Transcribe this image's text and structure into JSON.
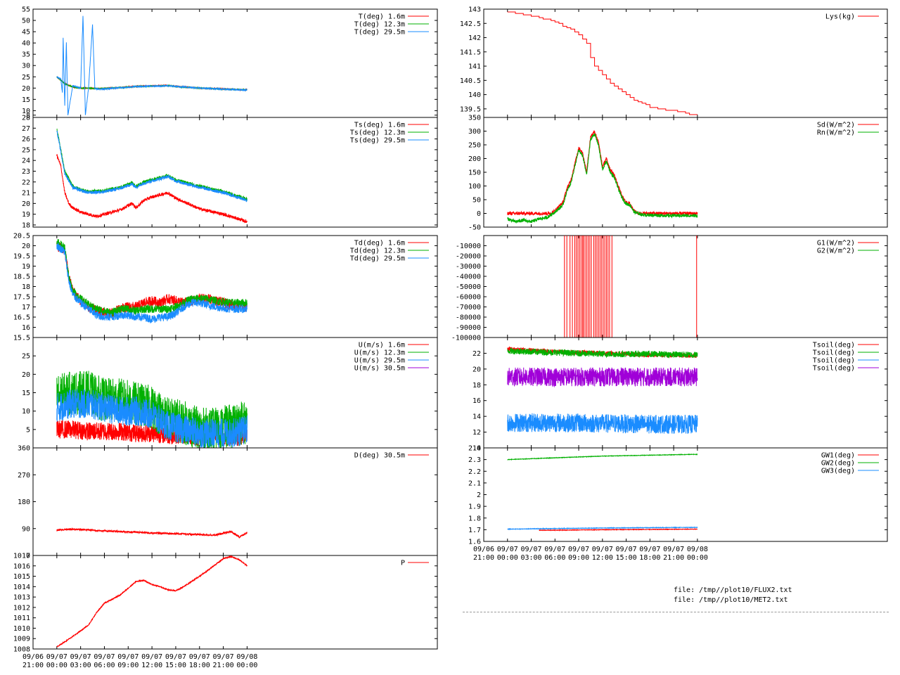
{
  "colors": {
    "red": "#ff0000",
    "green": "#00b000",
    "blue": "#1a8cff",
    "purple": "#a000d8"
  },
  "files": [
    "file: /tmp//plot10/FLUX2.txt",
    "file: /tmp//plot10/MET2.txt"
  ],
  "x_axis": {
    "range": [
      -3,
      48
    ],
    "ticks": [
      {
        "v": -3,
        "l1": "09/06",
        "l2": "21:00"
      },
      {
        "v": 0,
        "l1": "09/07",
        "l2": "00:00"
      },
      {
        "v": 3,
        "l1": "09/07",
        "l2": "03:00"
      },
      {
        "v": 6,
        "l1": "09/07",
        "l2": "06:00"
      },
      {
        "v": 9,
        "l1": "09/07",
        "l2": "09:00"
      },
      {
        "v": 12,
        "l1": "09/07",
        "l2": "12:00"
      },
      {
        "v": 15,
        "l1": "09/07",
        "l2": "15:00"
      },
      {
        "v": 18,
        "l1": "09/07",
        "l2": "18:00"
      },
      {
        "v": 21,
        "l1": "09/07",
        "l2": "21:00"
      },
      {
        "v": 24,
        "l1": "09/08",
        "l2": "00:00"
      }
    ]
  },
  "chart_data": [
    {
      "type": "line",
      "column": "left",
      "ylim": [
        7,
        55
      ],
      "yticks": [
        "55",
        "50",
        "45",
        "40",
        "35",
        "30",
        "25",
        "20",
        "15",
        "10",
        "8"
      ],
      "series": [
        {
          "name": "T(deg)  1.6m",
          "color": "red",
          "x": [
            0,
            1,
            2,
            3,
            4,
            5,
            6,
            8,
            10,
            12,
            14,
            16,
            18,
            20,
            22,
            24
          ],
          "y": [
            25,
            22,
            20.5,
            20,
            20,
            19.8,
            19.8,
            20.3,
            20.8,
            21,
            21.2,
            20.5,
            20,
            19.8,
            19.5,
            19.2
          ]
        },
        {
          "name": "T(deg) 12.3m",
          "color": "green",
          "x": [
            0,
            1,
            2,
            3,
            4,
            5,
            6,
            8,
            10,
            12,
            14,
            16,
            18,
            20,
            22,
            24
          ],
          "y": [
            25,
            22,
            20.5,
            20,
            20,
            19.8,
            19.8,
            20.2,
            20.7,
            20.9,
            21.1,
            20.4,
            20,
            19.7,
            19.4,
            19.2
          ]
        },
        {
          "name": "T(deg) 29.5m",
          "color": "blue",
          "x": [
            0,
            0.5,
            0.7,
            0.8,
            1,
            1.2,
            1.4,
            2,
            3,
            3.3,
            3.6,
            4,
            4.5,
            4.8,
            5,
            6,
            10,
            14,
            18,
            22,
            24
          ],
          "y": [
            25,
            24,
            18,
            42,
            12,
            40,
            8,
            21,
            20,
            52,
            8,
            20,
            48,
            19.6,
            19.6,
            19.6,
            20.7,
            21,
            20,
            19.4,
            19.1
          ]
        }
      ]
    },
    {
      "type": "line",
      "column": "left",
      "ylim": [
        17.8,
        28
      ],
      "yticks": [
        "28",
        "27",
        "26",
        "25",
        "24",
        "23",
        "22",
        "21",
        "20",
        "19",
        "18"
      ],
      "series": [
        {
          "name": "Ts(deg)  1.6m",
          "color": "red",
          "x": [
            0,
            0.5,
            1,
            1.5,
            2,
            3,
            4,
            5,
            6,
            8,
            9.5,
            10,
            11,
            12,
            14,
            15,
            18,
            21,
            24
          ],
          "y": [
            24.5,
            23.5,
            21,
            20,
            19.6,
            19.2,
            19,
            18.8,
            19,
            19.4,
            20,
            19.6,
            20.3,
            20.6,
            21,
            20.5,
            19.5,
            19,
            18.3
          ]
        },
        {
          "name": "Ts(deg) 12.3m",
          "color": "green",
          "x": [
            0,
            0.5,
            1,
            2,
            3,
            4,
            6,
            8,
            9.5,
            10,
            11,
            12,
            14,
            15,
            18,
            21,
            24
          ],
          "y": [
            27,
            25,
            23,
            21.6,
            21.3,
            21.1,
            21.2,
            21.5,
            21.9,
            21.6,
            22,
            22.2,
            22.6,
            22.2,
            21.6,
            21.1,
            20.4
          ]
        },
        {
          "name": "Ts(deg) 29.5m",
          "color": "blue",
          "x": [
            0,
            0.5,
            1,
            2,
            3,
            4,
            6,
            8,
            9.5,
            10,
            11,
            12,
            14,
            15,
            18,
            21,
            24
          ],
          "y": [
            26.8,
            24.8,
            22.8,
            21.5,
            21.2,
            21,
            21.1,
            21.4,
            21.8,
            21.5,
            21.9,
            22.1,
            22.5,
            22.1,
            21.5,
            21,
            20.3
          ]
        }
      ]
    },
    {
      "type": "line",
      "column": "left",
      "ylim": [
        15.5,
        20.5
      ],
      "yticks": [
        "20.5",
        "20",
        "19.5",
        "19",
        "18.5",
        "18",
        "17.5",
        "17",
        "16.5",
        "16",
        "15.5"
      ],
      "series": [
        {
          "name": "Td(deg)  1.6m",
          "color": "red",
          "x": [
            0,
            1,
            1.5,
            2,
            3,
            4,
            5,
            6,
            7,
            8,
            9,
            10,
            11,
            12,
            13,
            14,
            15,
            16,
            17,
            18,
            19,
            20,
            22,
            24
          ],
          "y": [
            20,
            19.8,
            18.5,
            17.8,
            17.3,
            17,
            16.8,
            16.7,
            16.7,
            16.9,
            17,
            17,
            17.2,
            17.3,
            17.2,
            17.4,
            17.3,
            17.2,
            17.3,
            17.4,
            17.4,
            17.3,
            17.1,
            17
          ]
        },
        {
          "name": "Td(deg) 12.3m",
          "color": "green",
          "x": [
            0,
            1,
            1.5,
            2,
            3,
            4,
            5,
            6,
            7,
            8,
            9,
            10,
            11,
            12,
            13,
            14,
            15,
            16,
            17,
            18,
            19,
            20,
            22,
            24
          ],
          "y": [
            20.2,
            19.9,
            18.5,
            17.8,
            17.4,
            17.1,
            16.9,
            16.8,
            16.7,
            16.9,
            16.9,
            16.8,
            16.9,
            16.9,
            16.9,
            16.9,
            17,
            17.2,
            17.4,
            17.4,
            17.4,
            17.3,
            17.2,
            17.2
          ]
        },
        {
          "name": "Td(deg) 29.5m",
          "color": "blue",
          "x": [
            0,
            1,
            1.5,
            2,
            3,
            4,
            5,
            6,
            7,
            8,
            9,
            10,
            11,
            12,
            13,
            14,
            15,
            16,
            17,
            18,
            19,
            20,
            22,
            24
          ],
          "y": [
            20,
            19.7,
            18.3,
            17.6,
            17.2,
            16.9,
            16.6,
            16.5,
            16.5,
            16.6,
            16.6,
            16.5,
            16.5,
            16.4,
            16.5,
            16.5,
            16.7,
            17,
            17.2,
            17.2,
            17.1,
            17,
            16.9,
            16.9
          ]
        }
      ]
    },
    {
      "type": "line",
      "column": "left",
      "ylim": [
        0,
        30
      ],
      "yticks": [
        "25",
        "20",
        "15",
        "10",
        "5"
      ],
      "series": [
        {
          "name": "U(m/s)  1.6m",
          "color": "red",
          "x": [
            0,
            2,
            4,
            6,
            8,
            10,
            12,
            14,
            16,
            18,
            20,
            22,
            24
          ],
          "y": [
            5,
            5,
            4.5,
            4.5,
            4.5,
            4,
            4,
            3.5,
            3.5,
            3,
            3,
            3,
            3
          ]
        },
        {
          "name": "U(m/s) 12.3m",
          "color": "green",
          "x": [
            0,
            2,
            4,
            6,
            8,
            10,
            12,
            14,
            16,
            18,
            20,
            22,
            24
          ],
          "y": [
            14,
            15,
            15,
            13,
            13,
            12,
            11,
            8,
            7,
            5,
            5,
            6,
            7
          ]
        },
        {
          "name": "U(m/s) 29.5m",
          "color": "blue",
          "x": [
            0,
            2,
            4,
            6,
            8,
            10,
            12,
            14,
            16,
            18,
            20,
            22,
            24
          ],
          "y": [
            11,
            12,
            12,
            11,
            10,
            10,
            9,
            6,
            5,
            4,
            4,
            4,
            5
          ]
        },
        {
          "name": "U(m/s) 30.5m",
          "color": "purple",
          "x": [],
          "y": []
        }
      ]
    },
    {
      "type": "line",
      "column": "left",
      "ylim": [
        0,
        360
      ],
      "yticks": [
        "360",
        "270",
        "180",
        "90",
        "0"
      ],
      "series": [
        {
          "name": "D(deg)  30.5m",
          "color": "red",
          "x": [
            0,
            2,
            4,
            6,
            8,
            10,
            12,
            14,
            16,
            18,
            20,
            22,
            23,
            24
          ],
          "y": [
            85,
            88,
            86,
            82,
            80,
            78,
            75,
            74,
            72,
            70,
            68,
            80,
            62,
            75
          ]
        }
      ]
    },
    {
      "type": "line",
      "column": "left",
      "ylim": [
        1008,
        1017
      ],
      "yticks": [
        "1017",
        "1016",
        "1015",
        "1014",
        "1013",
        "1012",
        "1011",
        "1010",
        "1009",
        "1008"
      ],
      "series": [
        {
          "name": "P",
          "color": "red",
          "x": [
            0,
            2,
            4,
            5,
            6,
            8,
            10,
            11,
            12,
            13,
            14,
            15,
            16,
            18,
            20,
            21,
            22,
            23,
            24
          ],
          "y": [
            1008.2,
            1009.2,
            1010.3,
            1011.5,
            1012.4,
            1013.2,
            1014.5,
            1014.6,
            1014.2,
            1014,
            1013.7,
            1013.6,
            1014,
            1015,
            1016.1,
            1016.7,
            1016.9,
            1016.6,
            1016
          ]
        }
      ]
    },
    {
      "type": "line",
      "column": "right",
      "ylim": [
        139.2,
        143
      ],
      "yticks": [
        "143",
        "142.5",
        "142",
        "141.5",
        "141",
        "140.5",
        "140",
        "139.5"
      ],
      "series": [
        {
          "name": "Lys(kg)",
          "color": "red",
          "x": [
            0,
            2,
            4,
            6,
            7,
            8,
            9,
            10,
            10.5,
            11,
            12,
            13,
            14,
            15,
            16,
            17,
            18,
            20,
            22,
            23,
            24
          ],
          "y": [
            142.9,
            142.8,
            142.7,
            142.55,
            142.4,
            142.3,
            142.1,
            141.8,
            141.3,
            141,
            140.7,
            140.4,
            140.2,
            140,
            139.8,
            139.7,
            139.55,
            139.45,
            139.4,
            139.3,
            139.3
          ]
        }
      ]
    },
    {
      "type": "line",
      "column": "right",
      "ylim": [
        -50,
        350
      ],
      "yticks": [
        "350",
        "300",
        "250",
        "200",
        "150",
        "100",
        "50",
        "0",
        "-50"
      ],
      "series": [
        {
          "name": "Sd(W/m^2)",
          "color": "red",
          "x": [
            0,
            5.5,
            6,
            7,
            7.5,
            8,
            8.5,
            9,
            9.5,
            10,
            10.5,
            11,
            11.5,
            12,
            12.5,
            13,
            13.5,
            14,
            14.5,
            15,
            15.5,
            16,
            16.5,
            17,
            24
          ],
          "y": [
            0,
            0,
            10,
            40,
            90,
            120,
            180,
            240,
            220,
            150,
            280,
            300,
            260,
            170,
            200,
            160,
            140,
            100,
            60,
            40,
            35,
            10,
            0,
            0,
            0
          ]
        },
        {
          "name": "Rn(W/m^2)",
          "color": "green",
          "x": [
            0,
            1,
            2,
            3,
            4,
            5,
            5.5,
            6,
            7,
            7.5,
            8,
            8.5,
            9,
            9.5,
            10,
            10.5,
            11,
            11.5,
            12,
            12.5,
            13,
            13.5,
            14,
            14.5,
            15,
            15.5,
            16,
            17,
            20,
            24
          ],
          "y": [
            -20,
            -30,
            -25,
            -30,
            -20,
            -15,
            -5,
            5,
            30,
            80,
            110,
            170,
            230,
            210,
            140,
            270,
            290,
            250,
            160,
            190,
            150,
            130,
            90,
            55,
            35,
            30,
            5,
            -5,
            -8,
            -8
          ]
        }
      ]
    },
    {
      "type": "line",
      "column": "right",
      "ylim": [
        -100000,
        0
      ],
      "yticks": [
        "-10000",
        "-20000",
        "-30000",
        "-40000",
        "-50000",
        "-60000",
        "-70000",
        "-80000",
        "-90000",
        "-100000"
      ],
      "series": [
        {
          "name": "G1(W/m^2)",
          "color": "red",
          "x": [],
          "y": []
        },
        {
          "name": "G2(W/m^2)",
          "color": "green",
          "x": [],
          "y": []
        }
      ]
    },
    {
      "type": "line",
      "column": "right",
      "ylim": [
        10,
        24
      ],
      "yticks": [
        "22",
        "20",
        "18",
        "16",
        "14",
        "12",
        "10"
      ],
      "series": [
        {
          "name": "Tsoil(deg)",
          "color": "red",
          "x": [
            0,
            6,
            12,
            18,
            24
          ],
          "y": [
            22.5,
            22.2,
            22,
            21.8,
            21.7
          ]
        },
        {
          "name": "Tsoil(deg)",
          "color": "green",
          "x": [
            0,
            6,
            12,
            18,
            24
          ],
          "y": [
            22.3,
            22.1,
            21.9,
            21.9,
            21.8
          ]
        },
        {
          "name": "Tsoil(deg)",
          "color": "blue",
          "x": [
            0,
            6,
            12,
            18,
            24
          ],
          "y": [
            13.2,
            13.2,
            13.1,
            13,
            13
          ]
        },
        {
          "name": "Tsoil(deg)",
          "color": "purple",
          "x": [
            0,
            6,
            12,
            18,
            24
          ],
          "y": [
            19,
            19,
            19,
            19,
            19
          ]
        }
      ]
    },
    {
      "type": "line",
      "column": "right",
      "ylim": [
        1.6,
        2.4
      ],
      "yticks": [
        "2.4",
        "2.3",
        "2.2",
        "2.1",
        "2",
        "1.9",
        "1.8",
        "1.7",
        "1.6"
      ],
      "series": [
        {
          "name": "GW1(deg)",
          "color": "red",
          "x": [
            4,
            12,
            24
          ],
          "y": [
            1.695,
            1.7,
            1.705
          ]
        },
        {
          "name": "GW2(deg)",
          "color": "green",
          "x": [
            0,
            12,
            24
          ],
          "y": [
            2.3,
            2.33,
            2.345
          ]
        },
        {
          "name": "GW3(deg)",
          "color": "blue",
          "x": [
            0,
            12,
            24
          ],
          "y": [
            1.705,
            1.715,
            1.72
          ]
        }
      ]
    }
  ]
}
